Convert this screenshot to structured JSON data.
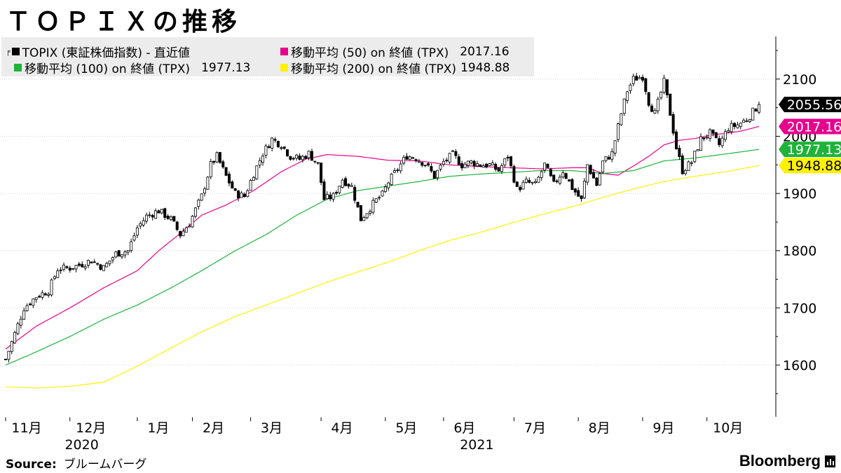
{
  "title": "ＴＯＰＩＸの推移",
  "legend": [
    {
      "label": "TOPIX (東証株価指数) - 直近値",
      "value": "",
      "color": "#000000",
      "icon": "candlestick-icon"
    },
    {
      "label": "移動平均 (50)  on 終値 (TPX)",
      "value": "2017.16",
      "color": "#e6008c"
    },
    {
      "label": "移動平均 (100)  on 終値 (TPX)",
      "value": "1977.13",
      "color": "#1fb33a"
    },
    {
      "label": "移動平均 (200)  on 終値 (TPX)",
      "value": "1948.88",
      "color": "#fff200"
    }
  ],
  "source": {
    "label": "Source:",
    "text": "ブルームバーグ"
  },
  "brand": "Bloomberg",
  "chart_data": {
    "type": "line",
    "title": "ＴＯＰＩＸの推移",
    "xlabel": "",
    "ylabel": "",
    "ylim": [
      1500,
      2180
    ],
    "yticks": [
      1600,
      1700,
      1800,
      1900,
      2000,
      2100
    ],
    "x_month_ticks": [
      {
        "label": "11月",
        "day": 0
      },
      {
        "label": "12月",
        "day": 21
      },
      {
        "label": "1月",
        "day": 43
      },
      {
        "label": "2月",
        "day": 61
      },
      {
        "label": "3月",
        "day": 80
      },
      {
        "label": "4月",
        "day": 103
      },
      {
        "label": "5月",
        "day": 124
      },
      {
        "label": "6月",
        "day": 143
      },
      {
        "label": "7月",
        "day": 166
      },
      {
        "label": "8月",
        "day": 187
      },
      {
        "label": "9月",
        "day": 208
      },
      {
        "label": "10月",
        "day": 229
      }
    ],
    "x_year_labels": [
      {
        "label": "2020",
        "day": 18
      },
      {
        "label": "2021",
        "day": 147
      }
    ],
    "x_day_range": [
      0,
      246
    ],
    "candles": {
      "name": "TOPIX (東証株価指数) - 直近値",
      "anchors_day": [
        0,
        3,
        6,
        10,
        14,
        17,
        21,
        24,
        28,
        32,
        36,
        40,
        43,
        46,
        50,
        54,
        57,
        60,
        64,
        67,
        69,
        72,
        75,
        78,
        81,
        84,
        87,
        90,
        93,
        96,
        99,
        102,
        104,
        107,
        110,
        113,
        116,
        119,
        121,
        123,
        125,
        128,
        131,
        134,
        137,
        140,
        143,
        146,
        149,
        152,
        155,
        158,
        161,
        164,
        167,
        170,
        173,
        176,
        179,
        182,
        185,
        188,
        190,
        193,
        195,
        198,
        201,
        203,
        205,
        208,
        210,
        212,
        215,
        217,
        219,
        221,
        224,
        227,
        230,
        233,
        236,
        239,
        242,
        246
      ],
      "anchors_close": [
        1610,
        1655,
        1700,
        1720,
        1730,
        1768,
        1770,
        1775,
        1783,
        1770,
        1795,
        1800,
        1840,
        1860,
        1870,
        1855,
        1828,
        1848,
        1895,
        1950,
        1965,
        1930,
        1900,
        1895,
        1935,
        1970,
        1995,
        1985,
        1965,
        1960,
        1970,
        1950,
        1890,
        1895,
        1925,
        1912,
        1855,
        1875,
        1888,
        1898,
        1920,
        1943,
        1966,
        1962,
        1952,
        1930,
        1955,
        1968,
        1950,
        1955,
        1950,
        1950,
        1940,
        1965,
        1907,
        1920,
        1915,
        1950,
        1915,
        1940,
        1910,
        1888,
        1950,
        1915,
        1955,
        1970,
        2040,
        2080,
        2100,
        2105,
        2060,
        2040,
        2095,
        2040,
        1980,
        1940,
        1955,
        1995,
        2005,
        1985,
        2015,
        2020,
        2030,
        2055.56
      ],
      "last": 2055.56
    },
    "series": [
      {
        "name": "移動平均 (50)  on 終値 (TPX)",
        "color": "#e6008c",
        "anchors_day": [
          0,
          10,
          21,
          32,
          43,
          50,
          57,
          64,
          72,
          81,
          90,
          98,
          105,
          115,
          125,
          135,
          145,
          155,
          165,
          175,
          185,
          190,
          195,
          200,
          205,
          210,
          215,
          220,
          225,
          230,
          235,
          240,
          246
        ],
        "values": [
          1628,
          1668,
          1700,
          1735,
          1765,
          1800,
          1830,
          1862,
          1880,
          1905,
          1938,
          1960,
          1968,
          1965,
          1958,
          1957,
          1950,
          1947,
          1945,
          1943,
          1945,
          1945,
          1935,
          1932,
          1948,
          1965,
          1985,
          1993,
          1996,
          2002,
          2005,
          2009,
          2017.16
        ],
        "last": 2017.16
      },
      {
        "name": "移動平均 (100)  on 終値 (TPX)",
        "color": "#1fb33a",
        "anchors_day": [
          0,
          10,
          21,
          32,
          43,
          54,
          64,
          75,
          85,
          95,
          105,
          115,
          125,
          135,
          145,
          155,
          165,
          175,
          185,
          195,
          205,
          215,
          225,
          235,
          246
        ],
        "values": [
          1600,
          1623,
          1650,
          1680,
          1705,
          1735,
          1765,
          1800,
          1828,
          1862,
          1890,
          1905,
          1913,
          1921,
          1930,
          1934,
          1937,
          1940,
          1940,
          1935,
          1940,
          1957,
          1962,
          1969,
          1977.13
        ],
        "last": 1977.13
      },
      {
        "name": "移動平均 (200)  on 終値 (TPX)",
        "color": "#fff200",
        "anchors_day": [
          0,
          10,
          21,
          32,
          43,
          54,
          64,
          75,
          85,
          95,
          105,
          115,
          125,
          135,
          145,
          155,
          165,
          175,
          185,
          195,
          205,
          215,
          225,
          235,
          246
        ],
        "values": [
          1562,
          1560,
          1563,
          1570,
          1598,
          1630,
          1658,
          1685,
          1705,
          1725,
          1745,
          1763,
          1780,
          1800,
          1818,
          1832,
          1848,
          1863,
          1877,
          1893,
          1908,
          1921,
          1930,
          1938,
          1948.88
        ],
        "last": 1948.88
      }
    ],
    "end_labels": [
      {
        "text": "2055.56",
        "bg": "#000000",
        "fg": "#ffffff",
        "value": 2055.56
      },
      {
        "text": "2017.16",
        "bg": "#e6008c",
        "fg": "#ffffff",
        "value": 2017.16
      },
      {
        "text": "1977.13",
        "bg": "#1fb33a",
        "fg": "#ffffff",
        "value": 1977.13
      },
      {
        "text": "1948.88",
        "bg": "#fff200",
        "fg": "#000000",
        "value": 1948.88
      }
    ],
    "grid": true
  }
}
